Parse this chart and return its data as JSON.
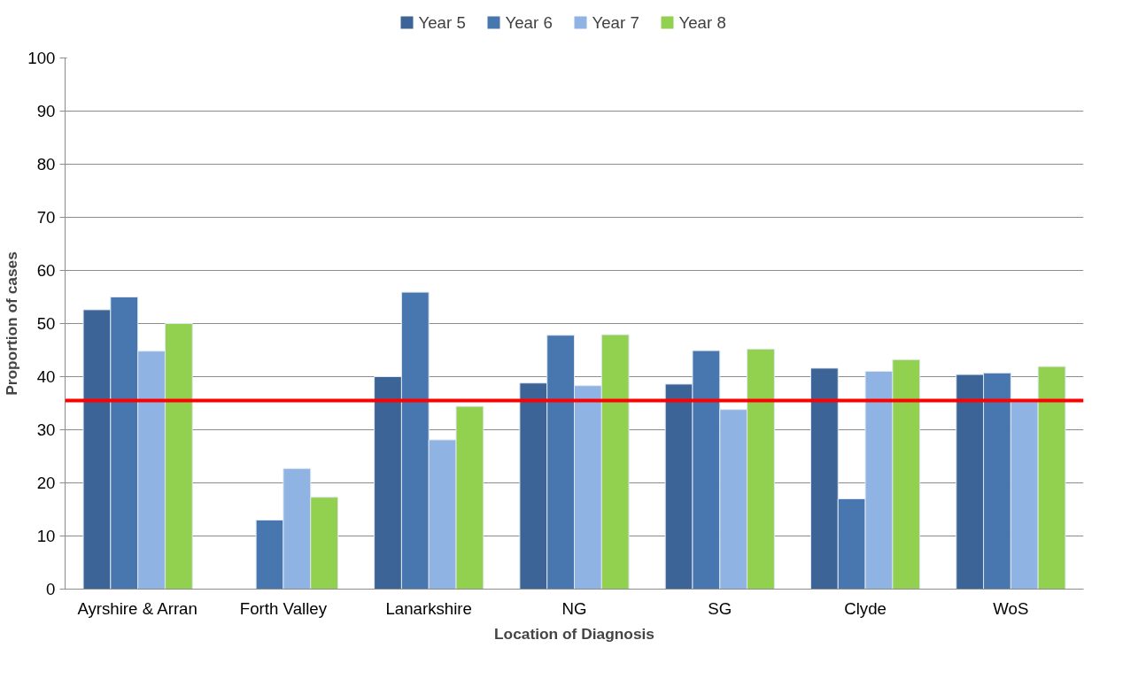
{
  "chart_data": {
    "type": "bar",
    "xlabel": "Location of Diagnosis",
    "ylabel": "Proportion of cases",
    "categories": [
      "Ayrshire & Arran",
      "Forth Valley",
      "Lanarkshire",
      "NG",
      "SG",
      "Clyde",
      "WoS"
    ],
    "series": [
      {
        "name": "Year 5",
        "color": "#3c6496",
        "values": [
          52.6,
          null,
          40.0,
          38.8,
          38.6,
          41.6,
          40.4
        ]
      },
      {
        "name": "Year 6",
        "color": "#4877b0",
        "values": [
          55.0,
          13.0,
          55.9,
          47.8,
          44.9,
          17.0,
          40.7
        ]
      },
      {
        "name": "Year 7",
        "color": "#8fb3e2",
        "values": [
          44.8,
          22.7,
          28.1,
          38.3,
          33.8,
          41.0,
          35.3
        ]
      },
      {
        "name": "Year 8",
        "color": "#92d050",
        "values": [
          50.0,
          17.3,
          34.4,
          47.9,
          45.2,
          43.2,
          41.9
        ]
      }
    ],
    "ylim": [
      0,
      100
    ],
    "yticks": [
      0,
      10,
      20,
      30,
      40,
      50,
      60,
      70,
      80,
      90,
      100
    ],
    "grid": "y",
    "legend": "top",
    "ref_lines": [
      {
        "axis": "y",
        "value": 35.5,
        "color": "#ff0000"
      }
    ]
  }
}
